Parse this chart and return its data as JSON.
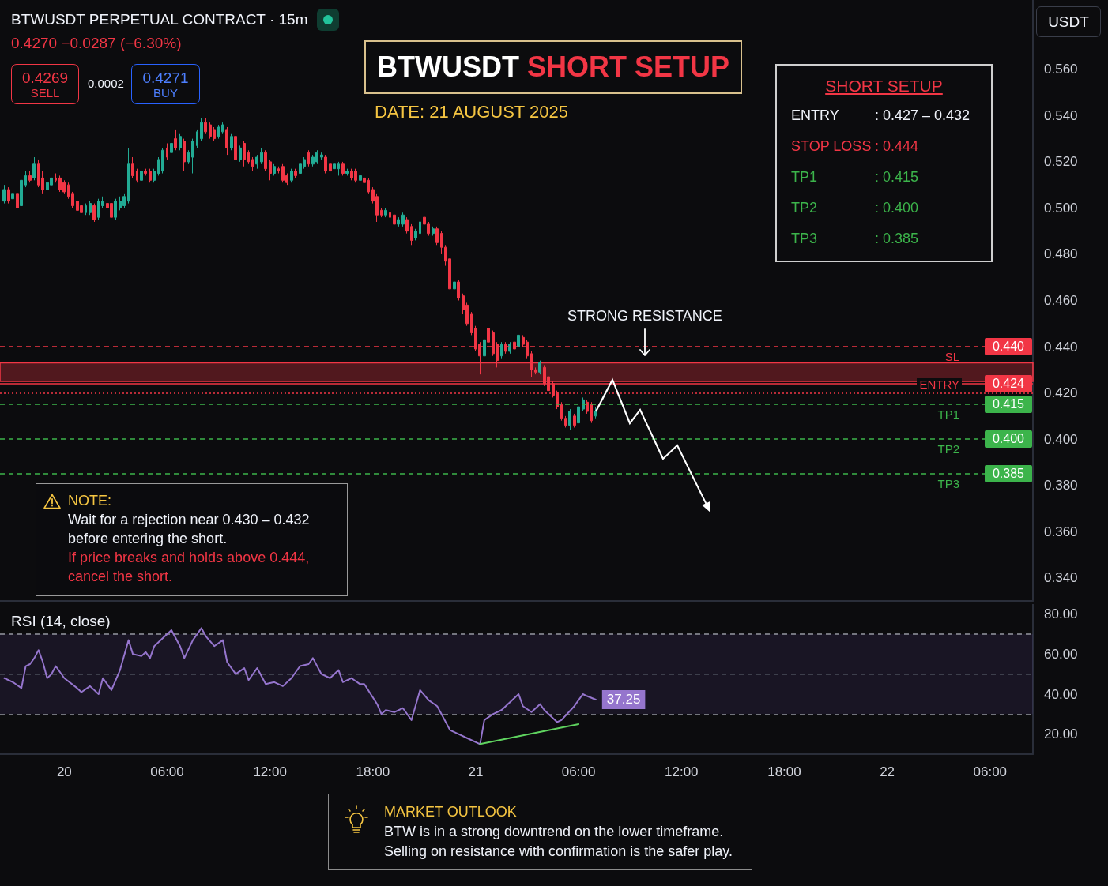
{
  "chart_data": [
    {
      "type": "candlestick",
      "title": "BTWUSDT SHORT SETUP",
      "subtitle": "DATE: 21 AUGUST 2025",
      "x": [
        "2025-08-19T20:30",
        "2025-08-19T20:45",
        "2025-08-19T21:00",
        "2025-08-19T21:15",
        "2025-08-19T21:30",
        "2025-08-19T21:45",
        "2025-08-19T22:00",
        "2025-08-19T22:15",
        "2025-08-19T22:30",
        "2025-08-19T22:45",
        "2025-08-19T23:00",
        "2025-08-19T23:15",
        "2025-08-19T23:30",
        "2025-08-19T23:45",
        "2025-08-20T00:00",
        "2025-08-20T00:15",
        "2025-08-20T00:30",
        "2025-08-20T00:45",
        "2025-08-20T01:00",
        "2025-08-20T01:15",
        "2025-08-20T01:30",
        "2025-08-20T01:45",
        "2025-08-20T02:00",
        "2025-08-20T02:15",
        "2025-08-20T02:30",
        "2025-08-20T02:45",
        "2025-08-20T03:00",
        "2025-08-20T03:15",
        "2025-08-20T03:30",
        "2025-08-20T03:45",
        "2025-08-20T04:00",
        "2025-08-20T04:15",
        "2025-08-20T04:30",
        "2025-08-20T04:45",
        "2025-08-20T05:00",
        "2025-08-20T05:15",
        "2025-08-20T05:30",
        "2025-08-20T05:45",
        "2025-08-20T06:00",
        "2025-08-20T06:15",
        "2025-08-20T06:30",
        "2025-08-20T06:45",
        "2025-08-20T07:00",
        "2025-08-20T07:15",
        "2025-08-20T07:30",
        "2025-08-20T07:45",
        "2025-08-20T08:00",
        "2025-08-20T08:15",
        "2025-08-20T08:30",
        "2025-08-20T08:45",
        "2025-08-20T09:00",
        "2025-08-20T09:15",
        "2025-08-20T09:30",
        "2025-08-20T09:45",
        "2025-08-20T10:00",
        "2025-08-20T10:15",
        "2025-08-20T10:30",
        "2025-08-20T10:45",
        "2025-08-20T11:00",
        "2025-08-20T11:15",
        "2025-08-20T11:30",
        "2025-08-20T11:45",
        "2025-08-20T12:00",
        "2025-08-20T12:15",
        "2025-08-20T12:30",
        "2025-08-20T12:45",
        "2025-08-20T13:00",
        "2025-08-20T13:15",
        "2025-08-20T13:30",
        "2025-08-20T13:45",
        "2025-08-20T14:00",
        "2025-08-20T14:15",
        "2025-08-20T14:30",
        "2025-08-20T14:45",
        "2025-08-20T15:00",
        "2025-08-20T15:15",
        "2025-08-20T15:30",
        "2025-08-20T15:45",
        "2025-08-20T16:00",
        "2025-08-20T16:15",
        "2025-08-20T16:30",
        "2025-08-20T16:45",
        "2025-08-20T17:00",
        "2025-08-20T17:15",
        "2025-08-20T17:30",
        "2025-08-20T17:45",
        "2025-08-20T18:00",
        "2025-08-20T18:15",
        "2025-08-20T18:30",
        "2025-08-20T18:45",
        "2025-08-20T19:00",
        "2025-08-20T19:15",
        "2025-08-20T19:30",
        "2025-08-20T19:45",
        "2025-08-20T20:00",
        "2025-08-20T20:15",
        "2025-08-20T20:30",
        "2025-08-20T20:45",
        "2025-08-20T21:00",
        "2025-08-20T21:15",
        "2025-08-20T21:30",
        "2025-08-20T21:45",
        "2025-08-20T22:00",
        "2025-08-20T22:15",
        "2025-08-20T22:30",
        "2025-08-20T22:45",
        "2025-08-20T23:00",
        "2025-08-20T23:15",
        "2025-08-20T23:30",
        "2025-08-20T23:45",
        "2025-08-21T00:00",
        "2025-08-21T00:15",
        "2025-08-21T00:30",
        "2025-08-21T00:45",
        "2025-08-21T01:00",
        "2025-08-21T01:15",
        "2025-08-21T01:30",
        "2025-08-21T01:45",
        "2025-08-21T02:00",
        "2025-08-21T02:15",
        "2025-08-21T02:30",
        "2025-08-21T02:45",
        "2025-08-21T03:00",
        "2025-08-21T03:15",
        "2025-08-21T03:30",
        "2025-08-21T03:45",
        "2025-08-21T04:00",
        "2025-08-21T04:15",
        "2025-08-21T04:30",
        "2025-08-21T04:45",
        "2025-08-21T05:00",
        "2025-08-21T05:15",
        "2025-08-21T05:30",
        "2025-08-21T05:45",
        "2025-08-21T06:00",
        "2025-08-21T06:15",
        "2025-08-21T06:30",
        "2025-08-21T06:45",
        "2025-08-21T07:00"
      ],
      "series": [
        {
          "ohlc": [
            [
              0.503,
              0.51,
              0.502,
              0.508
            ],
            [
              0.508,
              0.509,
              0.502,
              0.503
            ],
            [
              0.504,
              0.507,
              0.503,
              0.506
            ],
            [
              0.506,
              0.507,
              0.499,
              0.5
            ],
            [
              0.501,
              0.513,
              0.498,
              0.512
            ],
            [
              0.51,
              0.516,
              0.509,
              0.514
            ],
            [
              0.514,
              0.516,
              0.511,
              0.512
            ],
            [
              0.513,
              0.522,
              0.512,
              0.519
            ],
            [
              0.519,
              0.521,
              0.509,
              0.51
            ],
            [
              0.513,
              0.516,
              0.506,
              0.508
            ],
            [
              0.508,
              0.512,
              0.507,
              0.511
            ],
            [
              0.51,
              0.514,
              0.509,
              0.513
            ],
            [
              0.513,
              0.515,
              0.511,
              0.512
            ],
            [
              0.513,
              0.514,
              0.507,
              0.508
            ],
            [
              0.511,
              0.512,
              0.506,
              0.507
            ],
            [
              0.51,
              0.511,
              0.504,
              0.505
            ],
            [
              0.506,
              0.507,
              0.5,
              0.501
            ],
            [
              0.503,
              0.504,
              0.498,
              0.499
            ],
            [
              0.501,
              0.502,
              0.497,
              0.498
            ],
            [
              0.498,
              0.502,
              0.497,
              0.501
            ],
            [
              0.498,
              0.503,
              0.497,
              0.502
            ],
            [
              0.501,
              0.502,
              0.494,
              0.495
            ],
            [
              0.496,
              0.504,
              0.495,
              0.503
            ],
            [
              0.501,
              0.505,
              0.5,
              0.503
            ],
            [
              0.502,
              0.503,
              0.499,
              0.5
            ],
            [
              0.502,
              0.503,
              0.494,
              0.496
            ],
            [
              0.496,
              0.504,
              0.495,
              0.503
            ],
            [
              0.5,
              0.505,
              0.499,
              0.503
            ],
            [
              0.501,
              0.506,
              0.5,
              0.505
            ],
            [
              0.503,
              0.526,
              0.502,
              0.519
            ],
            [
              0.519,
              0.522,
              0.513,
              0.514
            ],
            [
              0.516,
              0.517,
              0.511,
              0.512
            ],
            [
              0.512,
              0.517,
              0.511,
              0.516
            ],
            [
              0.516,
              0.517,
              0.514,
              0.515
            ],
            [
              0.516,
              0.517,
              0.511,
              0.512
            ],
            [
              0.512,
              0.517,
              0.511,
              0.516
            ],
            [
              0.515,
              0.522,
              0.514,
              0.521
            ],
            [
              0.516,
              0.526,
              0.515,
              0.525
            ],
            [
              0.526,
              0.528,
              0.521,
              0.522
            ],
            [
              0.524,
              0.53,
              0.523,
              0.528
            ],
            [
              0.53,
              0.534,
              0.525,
              0.526
            ],
            [
              0.526,
              0.532,
              0.525,
              0.531
            ],
            [
              0.529,
              0.53,
              0.516,
              0.52
            ],
            [
              0.52,
              0.525,
              0.519,
              0.524
            ],
            [
              0.522,
              0.53,
              0.515,
              0.529
            ],
            [
              0.527,
              0.534,
              0.526,
              0.533
            ],
            [
              0.53,
              0.539,
              0.529,
              0.537
            ],
            [
              0.537,
              0.539,
              0.532,
              0.533
            ],
            [
              0.536,
              0.537,
              0.53,
              0.531
            ],
            [
              0.534,
              0.535,
              0.529,
              0.53
            ],
            [
              0.531,
              0.536,
              0.53,
              0.535
            ],
            [
              0.533,
              0.537,
              0.532,
              0.536
            ],
            [
              0.534,
              0.535,
              0.523,
              0.526
            ],
            [
              0.526,
              0.532,
              0.525,
              0.531
            ],
            [
              0.531,
              0.538,
              0.519,
              0.521
            ],
            [
              0.521,
              0.527,
              0.52,
              0.526
            ],
            [
              0.528,
              0.529,
              0.518,
              0.521
            ],
            [
              0.524,
              0.525,
              0.519,
              0.52
            ],
            [
              0.521,
              0.522,
              0.516,
              0.518
            ],
            [
              0.519,
              0.523,
              0.517,
              0.522
            ],
            [
              0.52,
              0.526,
              0.519,
              0.524
            ],
            [
              0.524,
              0.525,
              0.516,
              0.517
            ],
            [
              0.52,
              0.521,
              0.512,
              0.515
            ],
            [
              0.515,
              0.519,
              0.514,
              0.518
            ],
            [
              0.517,
              0.518,
              0.515,
              0.516
            ],
            [
              0.518,
              0.519,
              0.511,
              0.512
            ],
            [
              0.514,
              0.515,
              0.51,
              0.511
            ],
            [
              0.512,
              0.517,
              0.511,
              0.516
            ],
            [
              0.516,
              0.517,
              0.513,
              0.514
            ],
            [
              0.515,
              0.52,
              0.514,
              0.519
            ],
            [
              0.518,
              0.522,
              0.517,
              0.521
            ],
            [
              0.524,
              0.525,
              0.518,
              0.519
            ],
            [
              0.519,
              0.523,
              0.518,
              0.522
            ],
            [
              0.52,
              0.525,
              0.519,
              0.524
            ],
            [
              0.522,
              0.524,
              0.521,
              0.523
            ],
            [
              0.522,
              0.523,
              0.515,
              0.516
            ],
            [
              0.519,
              0.52,
              0.515,
              0.516
            ],
            [
              0.517,
              0.52,
              0.516,
              0.519
            ],
            [
              0.517,
              0.52,
              0.514,
              0.519
            ],
            [
              0.519,
              0.52,
              0.514,
              0.515
            ],
            [
              0.515,
              0.517,
              0.514,
              0.516
            ],
            [
              0.516,
              0.517,
              0.512,
              0.513
            ],
            [
              0.516,
              0.517,
              0.511,
              0.512
            ],
            [
              0.512,
              0.515,
              0.511,
              0.514
            ],
            [
              0.513,
              0.514,
              0.507,
              0.511
            ],
            [
              0.512,
              0.513,
              0.506,
              0.507
            ],
            [
              0.508,
              0.509,
              0.502,
              0.503
            ],
            [
              0.505,
              0.506,
              0.494,
              0.497
            ],
            [
              0.499,
              0.5,
              0.496,
              0.497
            ],
            [
              0.497,
              0.5,
              0.496,
              0.499
            ],
            [
              0.498,
              0.499,
              0.495,
              0.496
            ],
            [
              0.497,
              0.498,
              0.492,
              0.493
            ],
            [
              0.493,
              0.496,
              0.492,
              0.495
            ],
            [
              0.493,
              0.498,
              0.492,
              0.497
            ],
            [
              0.495,
              0.496,
              0.489,
              0.49
            ],
            [
              0.492,
              0.493,
              0.484,
              0.486
            ],
            [
              0.487,
              0.491,
              0.486,
              0.49
            ],
            [
              0.489,
              0.495,
              0.488,
              0.494
            ],
            [
              0.496,
              0.497,
              0.492,
              0.493
            ],
            [
              0.493,
              0.494,
              0.488,
              0.489
            ],
            [
              0.489,
              0.492,
              0.488,
              0.491
            ],
            [
              0.491,
              0.492,
              0.484,
              0.485
            ],
            [
              0.489,
              0.49,
              0.48,
              0.483
            ],
            [
              0.483,
              0.484,
              0.475,
              0.477
            ],
            [
              0.478,
              0.479,
              0.461,
              0.465
            ],
            [
              0.465,
              0.469,
              0.464,
              0.468
            ],
            [
              0.468,
              0.469,
              0.46,
              0.461
            ],
            [
              0.462,
              0.463,
              0.454,
              0.456
            ],
            [
              0.458,
              0.459,
              0.449,
              0.45
            ],
            [
              0.454,
              0.455,
              0.445,
              0.446
            ],
            [
              0.448,
              0.449,
              0.438,
              0.439
            ],
            [
              0.441,
              0.442,
              0.428,
              0.436
            ],
            [
              0.436,
              0.444,
              0.435,
              0.443
            ],
            [
              0.448,
              0.451,
              0.441,
              0.442
            ],
            [
              0.446,
              0.447,
              0.436,
              0.437
            ],
            [
              0.441,
              0.442,
              0.431,
              0.434
            ],
            [
              0.436,
              0.442,
              0.435,
              0.441
            ],
            [
              0.441,
              0.442,
              0.437,
              0.438
            ],
            [
              0.438,
              0.442,
              0.437,
              0.441
            ],
            [
              0.442,
              0.443,
              0.438,
              0.439
            ],
            [
              0.44,
              0.446,
              0.439,
              0.445
            ],
            [
              0.444,
              0.445,
              0.44,
              0.441
            ],
            [
              0.442,
              0.443,
              0.435,
              0.436
            ],
            [
              0.437,
              0.438,
              0.427,
              0.43
            ],
            [
              0.43,
              0.431,
              0.428,
              0.429
            ],
            [
              0.429,
              0.434,
              0.428,
              0.433
            ],
            [
              0.431,
              0.432,
              0.423,
              0.424
            ],
            [
              0.427,
              0.428,
              0.42,
              0.421
            ],
            [
              0.424,
              0.425,
              0.418,
              0.419
            ],
            [
              0.42,
              0.421,
              0.413,
              0.414
            ],
            [
              0.415,
              0.416,
              0.408,
              0.409
            ],
            [
              0.409,
              0.41,
              0.405,
              0.406
            ],
            [
              0.406,
              0.413,
              0.404,
              0.412
            ],
            [
              0.41,
              0.411,
              0.405,
              0.406
            ],
            [
              0.407,
              0.415,
              0.406,
              0.414
            ],
            [
              0.413,
              0.418,
              0.412,
              0.417
            ],
            [
              0.416,
              0.417,
              0.411,
              0.412
            ],
            [
              0.415,
              0.416,
              0.407,
              0.408
            ],
            [
              0.41,
              0.414,
              0.409,
              0.412
            ]
          ],
          "colors": [
            "#22ab94",
            "#f23645",
            "#22ab94",
            "#f23645",
            "#22ab94",
            "#22ab94",
            "#f23645",
            "#22ab94",
            "#f23645",
            "#f23645",
            "#22ab94",
            "#22ab94",
            "#f23645",
            "#f23645",
            "#f23645",
            "#f23645",
            "#f23645",
            "#f23645",
            "#f23645",
            "#22ab94",
            "#22ab94",
            "#f23645",
            "#22ab94",
            "#22ab94",
            "#f23645",
            "#f23645",
            "#22ab94",
            "#22ab94",
            "#22ab94",
            "#22ab94",
            "#f23645",
            "#f23645",
            "#22ab94",
            "#f23645",
            "#f23645",
            "#22ab94",
            "#22ab94",
            "#22ab94",
            "#f23645",
            "#22ab94",
            "#f23645",
            "#22ab94",
            "#f23645",
            "#22ab94",
            "#22ab94",
            "#22ab94",
            "#22ab94",
            "#f23645",
            "#f23645",
            "#f23645",
            "#22ab94",
            "#22ab94",
            "#f23645",
            "#22ab94",
            "#f23645",
            "#22ab94",
            "#f23645",
            "#f23645",
            "#f23645",
            "#22ab94",
            "#22ab94",
            "#f23645",
            "#f23645",
            "#22ab94",
            "#f23645",
            "#f23645",
            "#f23645",
            "#22ab94",
            "#f23645",
            "#22ab94",
            "#22ab94",
            "#f23645",
            "#22ab94",
            "#22ab94",
            "#22ab94",
            "#f23645",
            "#f23645",
            "#22ab94",
            "#22ab94",
            "#f23645",
            "#22ab94",
            "#f23645",
            "#f23645",
            "#22ab94",
            "#f23645",
            "#f23645",
            "#f23645",
            "#f23645",
            "#f23645",
            "#22ab94",
            "#f23645",
            "#f23645",
            "#22ab94",
            "#22ab94",
            "#f23645",
            "#f23645",
            "#22ab94",
            "#22ab94",
            "#f23645",
            "#f23645",
            "#22ab94",
            "#f23645",
            "#f23645",
            "#f23645",
            "#f23645",
            "#22ab94",
            "#f23645",
            "#f23645",
            "#f23645",
            "#f23645",
            "#f23645",
            "#f23645",
            "#22ab94",
            "#f23645",
            "#f23645",
            "#f23645",
            "#22ab94",
            "#f23645",
            "#22ab94",
            "#f23645",
            "#22ab94",
            "#f23645",
            "#f23645",
            "#f23645",
            "#f23645",
            "#22ab94",
            "#f23645",
            "#f23645",
            "#f23645",
            "#f23645",
            "#f23645",
            "#f23645",
            "#22ab94",
            "#f23645",
            "#22ab94",
            "#22ab94",
            "#f23645",
            "#f23645",
            "#22ab94"
          ]
        }
      ],
      "xlim": [
        "2025-08-19T20:15",
        "2025-08-22T08:30"
      ],
      "ylim": [
        0.33,
        0.59
      ],
      "yticks": [
        {
          "value": 0.34,
          "label": "0.340"
        },
        {
          "value": 0.36,
          "label": "0.360"
        },
        {
          "value": 0.38,
          "label": "0.380"
        },
        {
          "value": 0.4,
          "label": "0.400"
        },
        {
          "value": 0.42,
          "label": "0.420"
        },
        {
          "value": 0.44,
          "label": "0.440"
        },
        {
          "value": 0.46,
          "label": "0.460"
        },
        {
          "value": 0.48,
          "label": "0.480"
        },
        {
          "value": 0.5,
          "label": "0.500"
        },
        {
          "value": 0.52,
          "label": "0.520"
        },
        {
          "value": 0.54,
          "label": "0.540"
        },
        {
          "value": 0.56,
          "label": "0.560"
        }
      ],
      "tick_labels": "y",
      "ref_lines": [
        {
          "axis": "y",
          "value": 0.44,
          "label": "SL",
          "color": "#f23645",
          "line_style": "dashed"
        },
        {
          "axis": "y",
          "value": 0.424,
          "color": "#f23645",
          "line_style": "solid"
        },
        {
          "axis": "y",
          "value": 0.42,
          "label": "ENTRY",
          "color": "#f23645",
          "line_style": "dotted"
        },
        {
          "axis": "y",
          "value": 0.415,
          "label": "TP1",
          "color": "#3cb44b",
          "line_style": "dashed"
        },
        {
          "axis": "y",
          "value": 0.4,
          "label": "TP2",
          "color": "#3cb44b",
          "line_style": "dashed"
        },
        {
          "axis": "y",
          "value": 0.385,
          "label": "TP3",
          "color": "#3cb44b",
          "line_style": "dashed"
        }
      ],
      "bands": [
        {
          "axis": "y",
          "from": 0.425,
          "to": 0.433,
          "label": "STRONG RESISTANCE",
          "color": "#f23645"
        }
      ],
      "annotations": [
        "BTWUSDT PERPETUAL CONTRACT · 15m",
        "0.4270 −0.0287 (−6.30%)",
        "0.4269",
        "SELL",
        "0.0002",
        "0.4271",
        "BUY",
        "USDT",
        "SHORT SETUP",
        "ENTRY",
        ": 0.427 – 0.432",
        "STOP LOSS",
        ": 0.444",
        "TP1",
        ": 0.415",
        "TP2",
        ": 0.400",
        "TP3",
        ": 0.385",
        "NOTE:",
        "Wait for a rejection near 0.430 – 0.432 before entering the short.",
        "If price breaks and holds above 0.444, cancel the short.",
        "0.440",
        "0.424",
        "0.415",
        "0.400",
        "0.385"
      ]
    },
    {
      "type": "line",
      "title": "RSI (14, close)",
      "x": [
        "2025-08-19T20:30",
        "2025-08-19T21:00",
        "2025-08-19T21:30",
        "2025-08-19T21:45",
        "2025-08-19T22:00",
        "2025-08-19T22:15",
        "2025-08-19T22:30",
        "2025-08-19T22:45",
        "2025-08-19T23:00",
        "2025-08-19T23:15",
        "2025-08-19T23:30",
        "2025-08-20T00:00",
        "2025-08-20T00:45",
        "2025-08-20T01:00",
        "2025-08-20T01:30",
        "2025-08-20T02:00",
        "2025-08-20T02:15",
        "2025-08-20T02:45",
        "2025-08-20T03:15",
        "2025-08-20T03:45",
        "2025-08-20T04:00",
        "2025-08-20T04:30",
        "2025-08-20T04:45",
        "2025-08-20T05:00",
        "2025-08-20T05:15",
        "2025-08-20T05:45",
        "2025-08-20T06:15",
        "2025-08-20T06:45",
        "2025-08-20T07:00",
        "2025-08-20T07:30",
        "2025-08-20T08:00",
        "2025-08-20T08:15",
        "2025-08-20T08:45",
        "2025-08-20T09:15",
        "2025-08-20T09:30",
        "2025-08-20T10:00",
        "2025-08-20T10:30",
        "2025-08-20T10:45",
        "2025-08-20T11:15",
        "2025-08-20T11:45",
        "2025-08-20T12:15",
        "2025-08-20T12:45",
        "2025-08-20T13:15",
        "2025-08-20T13:45",
        "2025-08-20T14:15",
        "2025-08-20T14:30",
        "2025-08-20T15:00",
        "2025-08-20T15:30",
        "2025-08-20T16:00",
        "2025-08-20T16:15",
        "2025-08-20T16:45",
        "2025-08-20T17:15",
        "2025-08-20T17:30",
        "2025-08-20T18:15",
        "2025-08-20T18:30",
        "2025-08-20T18:45",
        "2025-08-20T19:15",
        "2025-08-20T19:45",
        "2025-08-20T20:15",
        "2025-08-20T20:45",
        "2025-08-20T21:15",
        "2025-08-20T21:45",
        "2025-08-20T22:00",
        "2025-08-20T22:30",
        "2025-08-20T23:00",
        "2025-08-20T23:30",
        "2025-08-21T00:15",
        "2025-08-21T00:30",
        "2025-08-21T01:00",
        "2025-08-21T01:30",
        "2025-08-21T01:45",
        "2025-08-21T02:30",
        "2025-08-21T02:45",
        "2025-08-21T03:15",
        "2025-08-21T03:45",
        "2025-08-21T04:00",
        "2025-08-21T04:45",
        "2025-08-21T05:00",
        "2025-08-21T05:45",
        "2025-08-21T06:15",
        "2025-08-21T06:30",
        "2025-08-21T07:00"
      ],
      "series": [
        {
          "values": [
            48,
            46,
            43,
            54,
            55,
            58,
            62,
            56,
            48,
            50,
            54,
            48,
            43,
            41,
            44,
            40,
            48,
            42,
            52,
            67,
            60,
            59,
            61,
            58,
            64,
            68,
            72,
            64,
            58,
            67,
            73,
            69,
            64,
            67,
            56,
            50,
            53,
            47,
            53,
            45,
            46,
            44,
            48,
            54,
            55,
            58,
            50,
            48,
            52,
            46,
            48,
            45,
            45,
            35,
            30,
            32,
            31,
            33,
            27,
            42,
            37,
            34,
            30,
            22,
            20,
            18,
            15,
            27,
            30,
            32,
            34,
            40,
            34,
            31,
            35,
            32,
            26,
            27,
            34,
            40,
            39,
            37.25
          ],
          "color": "#9575cd",
          "value_labels": [
            null,
            null,
            null,
            null,
            null,
            null,
            null,
            null,
            null,
            null,
            null,
            null,
            null,
            null,
            null,
            null,
            null,
            null,
            null,
            null,
            null,
            null,
            null,
            null,
            null,
            null,
            null,
            null,
            null,
            null,
            null,
            null,
            null,
            null,
            null,
            null,
            null,
            null,
            null,
            null,
            null,
            null,
            null,
            null,
            null,
            null,
            null,
            null,
            null,
            null,
            null,
            null,
            null,
            null,
            null,
            null,
            null,
            null,
            null,
            null,
            null,
            null,
            null,
            null,
            null,
            null,
            null,
            null,
            null,
            null,
            null,
            null,
            null,
            null,
            null,
            null,
            null,
            null,
            null,
            null,
            null,
            "37.25"
          ]
        },
        {
          "x": [
            "2025-08-21T00:15",
            "2025-08-21T06:00"
          ],
          "values": [
            15,
            25
          ],
          "color": "#5fd35f"
        }
      ],
      "xlim": [
        "2025-08-19T20:15",
        "2025-08-22T08:30"
      ],
      "xticks": [
        {
          "value": "2025-08-20T00:00",
          "label": "20"
        },
        {
          "value": "2025-08-20T06:00",
          "label": "06:00"
        },
        {
          "value": "2025-08-20T12:00",
          "label": "12:00"
        },
        {
          "value": "2025-08-20T18:00",
          "label": "18:00"
        },
        {
          "value": "2025-08-21T00:00",
          "label": "21"
        },
        {
          "value": "2025-08-21T06:00",
          "label": "06:00"
        },
        {
          "value": "2025-08-21T12:00",
          "label": "12:00"
        },
        {
          "value": "2025-08-21T18:00",
          "label": "18:00"
        },
        {
          "value": "2025-08-22T00:00",
          "label": "22"
        },
        {
          "value": "2025-08-22T06:00",
          "label": "06:00"
        }
      ],
      "ylim": [
        10,
        85
      ],
      "yticks": [
        {
          "value": 20,
          "label": "20.00"
        },
        {
          "value": 40,
          "label": "40.00"
        },
        {
          "value": 60,
          "label": "60.00"
        },
        {
          "value": 80,
          "label": "80.00"
        }
      ],
      "ref_lines": [
        {
          "axis": "y",
          "value": 70,
          "color": "#9598a1",
          "line_style": "dashed"
        },
        {
          "axis": "y",
          "value": 50,
          "color": "#4a4e59",
          "line_style": "dashed"
        },
        {
          "axis": "y",
          "value": 30,
          "color": "#9598a1",
          "line_style": "dashed"
        }
      ],
      "bands": [
        {
          "axis": "y",
          "from": 30,
          "to": 70,
          "color": "#7e57c2"
        }
      ],
      "annotations": [
        "MARKET OUTLOOK",
        "BTW is in a strong downtrend on the lower timeframe.",
        "Selling on resistance with confirmation is the safer play."
      ]
    }
  ]
}
